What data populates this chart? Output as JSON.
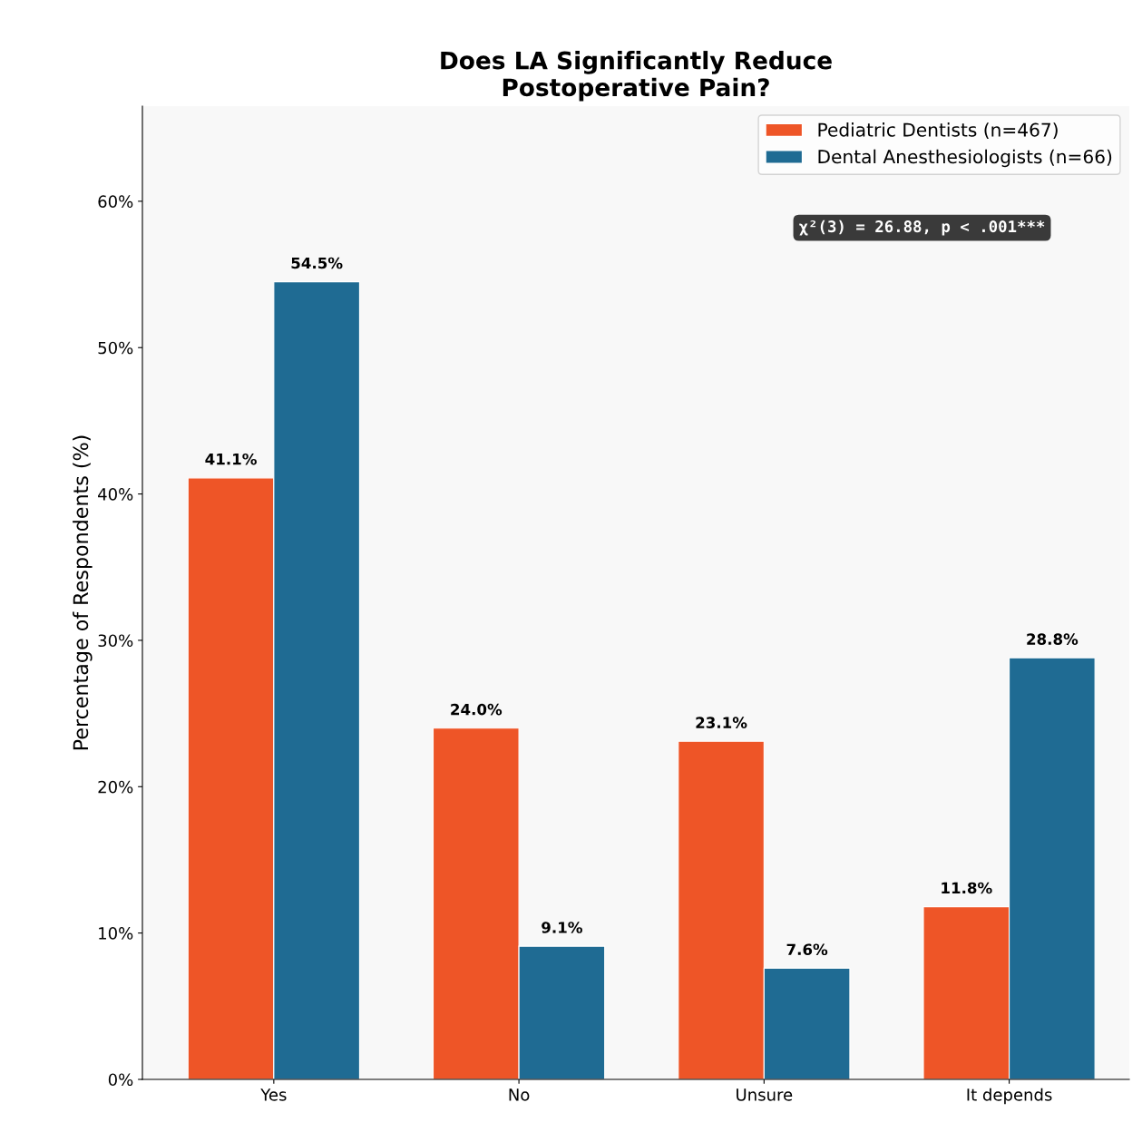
{
  "chart_data": {
    "type": "bar",
    "title": "Does LA Significantly Reduce\nPostoperative Pain?",
    "ylabel": "Percentage of Respondents (%)",
    "categories": [
      "Yes",
      "No",
      "Unsure",
      "It depends"
    ],
    "series": [
      {
        "name": "Pediatric Dentists (n=467)",
        "color": "#ee5527",
        "values": [
          41.1,
          24.0,
          23.1,
          11.8
        ]
      },
      {
        "name": "Dental Anesthesiologists (n=66)",
        "color": "#1f6b93",
        "values": [
          54.5,
          9.1,
          7.6,
          28.8
        ]
      }
    ],
    "value_labels": [
      [
        "41.1%",
        "24.0%",
        "23.1%",
        "11.8%"
      ],
      [
        "54.5%",
        "9.1%",
        "7.6%",
        "28.8%"
      ]
    ],
    "ylim": [
      0,
      66.5
    ],
    "yticks": [
      {
        "value": 0,
        "label": "0%"
      },
      {
        "value": 10,
        "label": "10%"
      },
      {
        "value": 20,
        "label": "20%"
      },
      {
        "value": 30,
        "label": "30%"
      },
      {
        "value": 40,
        "label": "40%"
      },
      {
        "value": 50,
        "label": "50%"
      },
      {
        "value": 60,
        "label": "60%"
      }
    ],
    "annotations": [
      "χ²(3) = 26.88, p < .001***"
    ],
    "legend": "top right",
    "grid": false
  }
}
